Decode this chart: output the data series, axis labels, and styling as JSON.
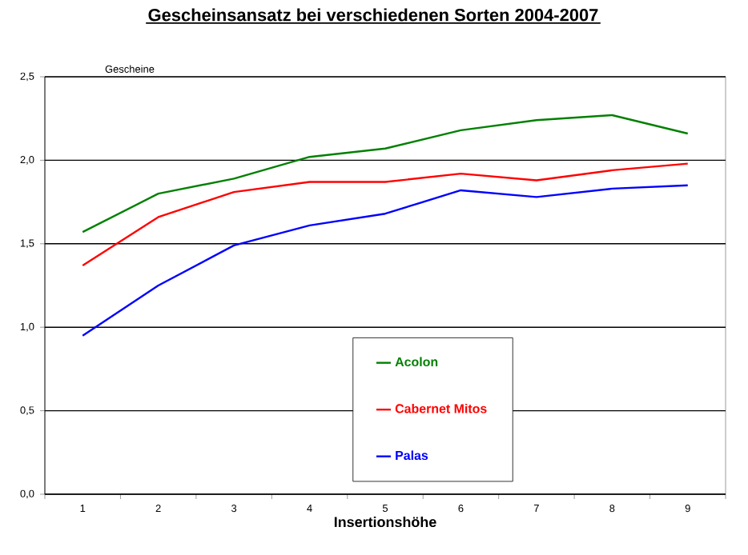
{
  "chart_data": {
    "type": "line",
    "title": "Gescheinsansatz bei verschiedenen Sorten 2004-2007",
    "ylabel": "Gescheine",
    "xlabel": "Insertionshöhe",
    "categories": [
      "1",
      "2",
      "3",
      "4",
      "5",
      "6",
      "7",
      "8",
      "9"
    ],
    "series": [
      {
        "name": "Acolon",
        "color": "#008000",
        "values": [
          1.57,
          1.8,
          1.89,
          2.02,
          2.07,
          2.18,
          2.24,
          2.27,
          2.16
        ]
      },
      {
        "name": "Cabernet Mitos",
        "color": "#ff0000",
        "values": [
          1.37,
          1.66,
          1.81,
          1.87,
          1.87,
          1.92,
          1.88,
          1.94,
          1.98
        ]
      },
      {
        "name": "Palas",
        "color": "#0000ff",
        "values": [
          0.95,
          1.25,
          1.49,
          1.61,
          1.68,
          1.82,
          1.78,
          1.83,
          1.85
        ]
      }
    ],
    "ylim": [
      0,
      2.5
    ],
    "yticks": [
      {
        "value": 0,
        "label": "0,0"
      },
      {
        "value": 0.5,
        "label": "0,5"
      },
      {
        "value": 1,
        "label": "1,0"
      },
      {
        "value": 1.5,
        "label": "1,5"
      },
      {
        "value": 2,
        "label": "2,0"
      },
      {
        "value": 2.5,
        "label": "2,5"
      }
    ],
    "grid": "y",
    "legend": "bottom",
    "marker": "none",
    "line_style": "solid"
  }
}
